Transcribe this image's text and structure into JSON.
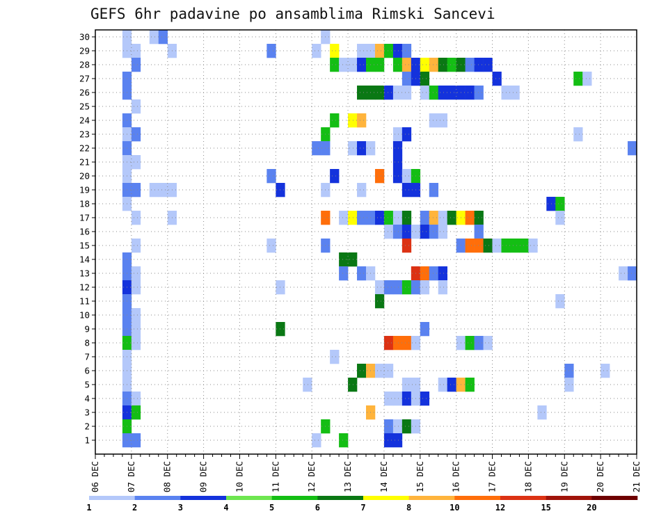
{
  "chart_data": {
    "type": "heatmap",
    "title": "GEFS 6hr padavine po ansamblima Rimski Sancevi",
    "x_tick_labels": [
      "06 DEC",
      "07 DEC",
      "08 DEC",
      "09 DEC",
      "10 DEC",
      "11 DEC",
      "12 DEC",
      "13 DEC",
      "14 DEC",
      "15 DEC",
      "16 DEC",
      "17 DEC",
      "18 DEC",
      "19 DEC",
      "20 DEC",
      "21 DEC"
    ],
    "y_tick_labels": [
      "1",
      "2",
      "3",
      "4",
      "5",
      "6",
      "7",
      "8",
      "9",
      "10",
      "11",
      "12",
      "13",
      "14",
      "15",
      "16",
      "17",
      "18",
      "19",
      "20",
      "21",
      "22",
      "23",
      "24",
      "25",
      "26",
      "27",
      "28",
      "29",
      "30"
    ],
    "x_range_steps": [
      0,
      60
    ],
    "y_range_members": [
      0,
      30
    ],
    "grid": true,
    "colorbar": {
      "labels": [
        "1",
        "2",
        "3",
        "4",
        "5",
        "6",
        "7",
        "8",
        "10",
        "12",
        "15",
        "20"
      ],
      "colors": [
        "#b4c8fa",
        "#5a82f0",
        "#1432dc",
        "#6ee650",
        "#14be14",
        "#0a7814",
        "#ffff00",
        "#ffb43c",
        "#ff6e0a",
        "#dc3214",
        "#a0140a",
        "#6e0000"
      ]
    },
    "cells_description": "each cell: [member, step, colorbar_class_index]; step 0 = 06 DEC 00z, 4 steps per day",
    "cells": [
      [
        30,
        3,
        0
      ],
      [
        30,
        6,
        0
      ],
      [
        30,
        7,
        1
      ],
      [
        30,
        25,
        0
      ],
      [
        29,
        3,
        0
      ],
      [
        29,
        4,
        0
      ],
      [
        29,
        8,
        0
      ],
      [
        29,
        19,
        1
      ],
      [
        29,
        24,
        0
      ],
      [
        29,
        26,
        6
      ],
      [
        29,
        29,
        0
      ],
      [
        29,
        30,
        0
      ],
      [
        29,
        31,
        7
      ],
      [
        29,
        32,
        4
      ],
      [
        29,
        33,
        2
      ],
      [
        29,
        34,
        1
      ],
      [
        28,
        4,
        1
      ],
      [
        28,
        26,
        4
      ],
      [
        28,
        27,
        0
      ],
      [
        28,
        28,
        0
      ],
      [
        28,
        29,
        2
      ],
      [
        28,
        30,
        4
      ],
      [
        28,
        31,
        4
      ],
      [
        28,
        33,
        4
      ],
      [
        28,
        34,
        7
      ],
      [
        28,
        35,
        2
      ],
      [
        28,
        36,
        6
      ],
      [
        28,
        37,
        7
      ],
      [
        28,
        38,
        5
      ],
      [
        28,
        39,
        4
      ],
      [
        28,
        40,
        5
      ],
      [
        28,
        41,
        1
      ],
      [
        28,
        42,
        2
      ],
      [
        28,
        43,
        2
      ],
      [
        27,
        3,
        1
      ],
      [
        27,
        34,
        1
      ],
      [
        27,
        35,
        2
      ],
      [
        27,
        36,
        5
      ],
      [
        27,
        44,
        2
      ],
      [
        27,
        53,
        4
      ],
      [
        27,
        54,
        0
      ],
      [
        26,
        3,
        1
      ],
      [
        26,
        29,
        5
      ],
      [
        26,
        30,
        5
      ],
      [
        26,
        31,
        5
      ],
      [
        26,
        32,
        2
      ],
      [
        26,
        33,
        0
      ],
      [
        26,
        34,
        0
      ],
      [
        26,
        36,
        0
      ],
      [
        26,
        37,
        4
      ],
      [
        26,
        38,
        2
      ],
      [
        26,
        39,
        2
      ],
      [
        26,
        40,
        2
      ],
      [
        26,
        41,
        2
      ],
      [
        26,
        42,
        1
      ],
      [
        26,
        45,
        0
      ],
      [
        26,
        46,
        0
      ],
      [
        25,
        4,
        0
      ],
      [
        24,
        3,
        1
      ],
      [
        24,
        26,
        4
      ],
      [
        24,
        28,
        6
      ],
      [
        24,
        29,
        7
      ],
      [
        24,
        37,
        0
      ],
      [
        24,
        38,
        0
      ],
      [
        23,
        3,
        0
      ],
      [
        23,
        4,
        1
      ],
      [
        23,
        25,
        4
      ],
      [
        23,
        33,
        0
      ],
      [
        23,
        34,
        2
      ],
      [
        23,
        53,
        0
      ],
      [
        22,
        3,
        1
      ],
      [
        22,
        24,
        1
      ],
      [
        22,
        25,
        1
      ],
      [
        22,
        28,
        0
      ],
      [
        22,
        29,
        2
      ],
      [
        22,
        30,
        0
      ],
      [
        22,
        33,
        2
      ],
      [
        22,
        59,
        1
      ],
      [
        21,
        3,
        0
      ],
      [
        21,
        4,
        0
      ],
      [
        21,
        33,
        2
      ],
      [
        20,
        3,
        0
      ],
      [
        20,
        19,
        1
      ],
      [
        20,
        26,
        2
      ],
      [
        20,
        31,
        8
      ],
      [
        20,
        33,
        2
      ],
      [
        20,
        34,
        0
      ],
      [
        20,
        35,
        4
      ],
      [
        19,
        3,
        1
      ],
      [
        19,
        4,
        1
      ],
      [
        19,
        6,
        0
      ],
      [
        19,
        7,
        0
      ],
      [
        19,
        8,
        0
      ],
      [
        19,
        20,
        2
      ],
      [
        19,
        25,
        0
      ],
      [
        19,
        29,
        0
      ],
      [
        19,
        34,
        2
      ],
      [
        19,
        35,
        2
      ],
      [
        19,
        37,
        1
      ],
      [
        18,
        3,
        0
      ],
      [
        18,
        50,
        2
      ],
      [
        18,
        51,
        4
      ],
      [
        17,
        4,
        0
      ],
      [
        17,
        8,
        0
      ],
      [
        17,
        25,
        8
      ],
      [
        17,
        27,
        0
      ],
      [
        17,
        28,
        6
      ],
      [
        17,
        29,
        1
      ],
      [
        17,
        30,
        1
      ],
      [
        17,
        31,
        2
      ],
      [
        17,
        32,
        4
      ],
      [
        17,
        33,
        0
      ],
      [
        17,
        34,
        5
      ],
      [
        17,
        36,
        1
      ],
      [
        17,
        37,
        7
      ],
      [
        17,
        38,
        0
      ],
      [
        17,
        39,
        5
      ],
      [
        17,
        40,
        6
      ],
      [
        17,
        41,
        8
      ],
      [
        17,
        42,
        5
      ],
      [
        17,
        51,
        0
      ],
      [
        16,
        32,
        0
      ],
      [
        16,
        33,
        1
      ],
      [
        16,
        34,
        2
      ],
      [
        16,
        35,
        0
      ],
      [
        16,
        36,
        2
      ],
      [
        16,
        37,
        1
      ],
      [
        16,
        38,
        0
      ],
      [
        16,
        42,
        1
      ],
      [
        15,
        4,
        0
      ],
      [
        15,
        19,
        0
      ],
      [
        15,
        25,
        1
      ],
      [
        15,
        34,
        9
      ],
      [
        15,
        40,
        1
      ],
      [
        15,
        41,
        8
      ],
      [
        15,
        42,
        8
      ],
      [
        15,
        43,
        5
      ],
      [
        15,
        44,
        0
      ],
      [
        15,
        45,
        4
      ],
      [
        15,
        46,
        4
      ],
      [
        15,
        47,
        4
      ],
      [
        15,
        48,
        0
      ],
      [
        14,
        3,
        1
      ],
      [
        14,
        27,
        5
      ],
      [
        14,
        28,
        5
      ],
      [
        13,
        3,
        1
      ],
      [
        13,
        4,
        0
      ],
      [
        13,
        27,
        1
      ],
      [
        13,
        29,
        1
      ],
      [
        13,
        30,
        0
      ],
      [
        13,
        35,
        9
      ],
      [
        13,
        36,
        8
      ],
      [
        13,
        37,
        1
      ],
      [
        13,
        38,
        2
      ],
      [
        13,
        58,
        0
      ],
      [
        13,
        59,
        1
      ],
      [
        12,
        3,
        2
      ],
      [
        12,
        4,
        0
      ],
      [
        12,
        20,
        0
      ],
      [
        12,
        31,
        0
      ],
      [
        12,
        32,
        1
      ],
      [
        12,
        33,
        1
      ],
      [
        12,
        34,
        4
      ],
      [
        12,
        35,
        1
      ],
      [
        12,
        36,
        0
      ],
      [
        12,
        38,
        0
      ],
      [
        11,
        3,
        1
      ],
      [
        11,
        31,
        5
      ],
      [
        11,
        51,
        0
      ],
      [
        10,
        3,
        1
      ],
      [
        10,
        4,
        0
      ],
      [
        9,
        3,
        1
      ],
      [
        9,
        4,
        0
      ],
      [
        9,
        20,
        5
      ],
      [
        9,
        36,
        1
      ],
      [
        8,
        3,
        4
      ],
      [
        8,
        4,
        0
      ],
      [
        8,
        32,
        9
      ],
      [
        8,
        33,
        8
      ],
      [
        8,
        34,
        8
      ],
      [
        8,
        35,
        0
      ],
      [
        8,
        40,
        0
      ],
      [
        8,
        41,
        4
      ],
      [
        8,
        42,
        1
      ],
      [
        8,
        43,
        0
      ],
      [
        7,
        3,
        0
      ],
      [
        7,
        26,
        0
      ],
      [
        6,
        3,
        0
      ],
      [
        6,
        29,
        5
      ],
      [
        6,
        30,
        7
      ],
      [
        6,
        31,
        0
      ],
      [
        6,
        32,
        0
      ],
      [
        6,
        52,
        1
      ],
      [
        6,
        56,
        0
      ],
      [
        5,
        3,
        0
      ],
      [
        5,
        23,
        0
      ],
      [
        5,
        28,
        5
      ],
      [
        5,
        34,
        0
      ],
      [
        5,
        35,
        0
      ],
      [
        5,
        38,
        0
      ],
      [
        5,
        39,
        2
      ],
      [
        5,
        40,
        7
      ],
      [
        5,
        41,
        4
      ],
      [
        5,
        52,
        0
      ],
      [
        4,
        3,
        1
      ],
      [
        4,
        4,
        0
      ],
      [
        4,
        32,
        0
      ],
      [
        4,
        33,
        0
      ],
      [
        4,
        34,
        2
      ],
      [
        4,
        35,
        0
      ],
      [
        4,
        36,
        2
      ],
      [
        3,
        3,
        2
      ],
      [
        3,
        4,
        4
      ],
      [
        3,
        30,
        7
      ],
      [
        3,
        49,
        0
      ],
      [
        2,
        3,
        4
      ],
      [
        2,
        25,
        4
      ],
      [
        2,
        32,
        1
      ],
      [
        2,
        33,
        0
      ],
      [
        2,
        34,
        5
      ],
      [
        2,
        35,
        0
      ],
      [
        1,
        3,
        1
      ],
      [
        1,
        4,
        1
      ],
      [
        1,
        24,
        0
      ],
      [
        1,
        27,
        4
      ],
      [
        1,
        32,
        2
      ],
      [
        1,
        33,
        2
      ]
    ]
  }
}
